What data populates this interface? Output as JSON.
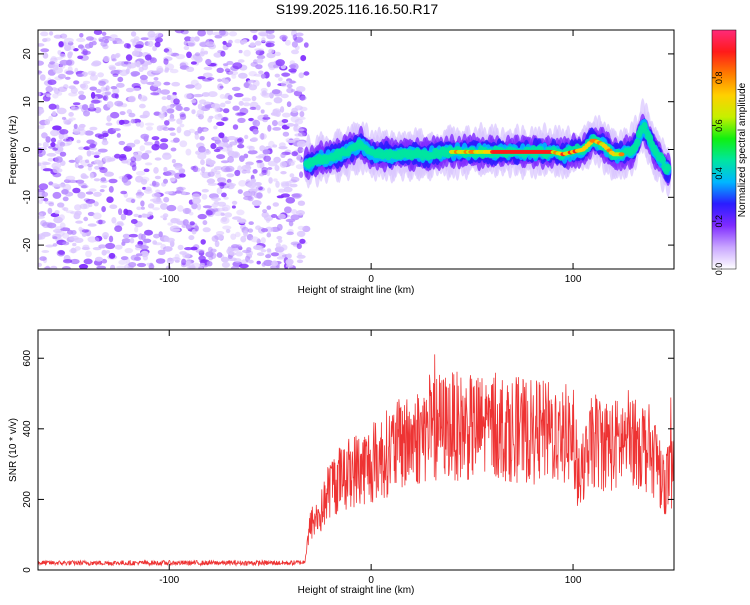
{
  "page_title": "S199.2025.116.16.50.R17",
  "chart_data": [
    {
      "type": "heatmap",
      "title": "S199.2025.116.16.50.R17",
      "xlabel": "Height of straight line (km)",
      "ylabel": "Frequency (Hz)",
      "xlim": [
        -165,
        150
      ],
      "ylim": [
        -25,
        25
      ],
      "xticks": [
        -100,
        0,
        100
      ],
      "yticks": [
        -20,
        -10,
        0,
        10,
        20
      ],
      "noise_region_x": [
        -165,
        -32
      ],
      "ridge": {
        "x": [
          -32,
          -25,
          -15,
          -10,
          -5,
          0,
          10,
          20,
          30,
          40,
          50,
          60,
          70,
          80,
          90,
          95,
          100,
          105,
          110,
          115,
          120,
          125,
          130,
          135,
          140,
          145,
          148
        ],
        "y": [
          -3,
          -2,
          -1,
          0,
          1,
          -1,
          -1,
          -1,
          -1,
          -0.5,
          -0.5,
          -0.5,
          -0.5,
          -0.5,
          -0.5,
          -1,
          -0.5,
          0,
          2,
          1,
          -1,
          -1,
          0,
          5,
          0,
          -3,
          -5
        ]
      },
      "colorbar": {
        "label": "Normalized spectral amplitude",
        "range": [
          0,
          1
        ],
        "ticks": [
          0.0,
          0.2,
          0.4,
          0.6,
          0.8
        ],
        "tick_labels": [
          "0.0",
          "0.2",
          "0.4",
          "0.6",
          "0.8"
        ],
        "colors": [
          "#ffffff",
          "#c9a6ff",
          "#7f2bff",
          "#2a1cff",
          "#00b7ff",
          "#00e6a0",
          "#10f010",
          "#c6f000",
          "#ffd000",
          "#ff7a00",
          "#ff1a1a",
          "#ff2a7a"
        ]
      }
    },
    {
      "type": "line",
      "xlabel": "Height of straight line (km)",
      "ylabel": "SNR (10 * v/v)",
      "xlim": [
        -165,
        150
      ],
      "ylim": [
        0,
        680
      ],
      "xticks": [
        -100,
        0,
        100
      ],
      "yticks": [
        0,
        200,
        400,
        600
      ],
      "series": [
        {
          "color": "#ee3333",
          "x": [
            -165,
            -140,
            -120,
            -100,
            -80,
            -60,
            -40,
            -33,
            -30,
            -25,
            -20,
            -10,
            0,
            10,
            20,
            30,
            40,
            50,
            60,
            70,
            80,
            90,
            100,
            103,
            110,
            120,
            130,
            140,
            145,
            150
          ],
          "y": [
            20,
            20,
            20,
            20,
            20,
            20,
            20,
            22,
            130,
            160,
            240,
            280,
            300,
            340,
            370,
            400,
            410,
            400,
            410,
            400,
            390,
            390,
            380,
            250,
            370,
            350,
            380,
            330,
            250,
            280
          ]
        }
      ]
    }
  ]
}
